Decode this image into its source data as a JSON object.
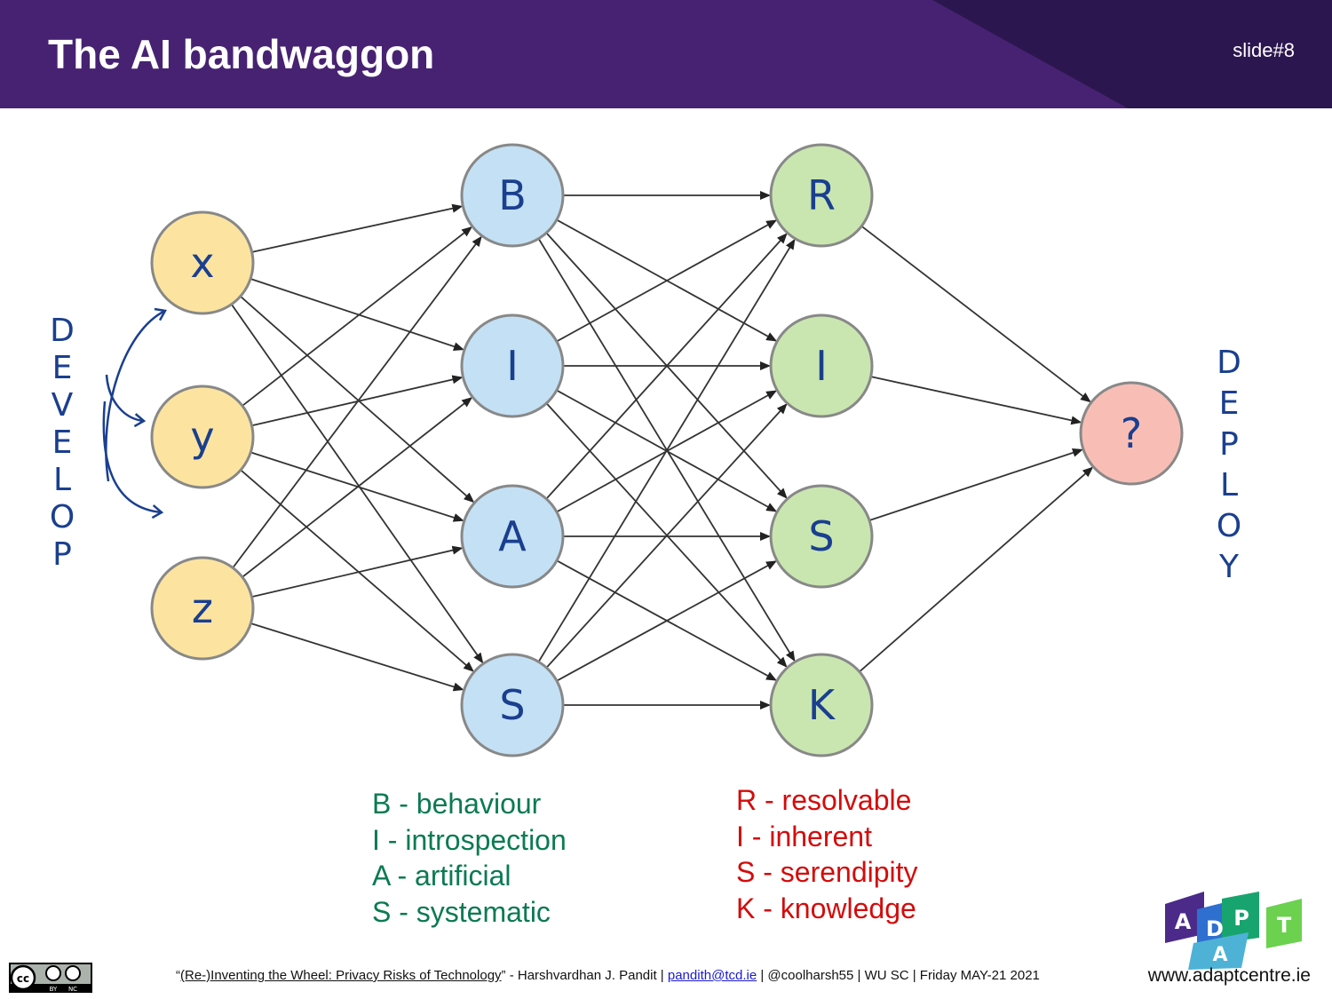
{
  "header": {
    "title": "The AI bandwaggon",
    "slide_number": "slide#8"
  },
  "diagram": {
    "inputs": [
      {
        "id": "x",
        "label": "x"
      },
      {
        "id": "y",
        "label": "y"
      },
      {
        "id": "z",
        "label": "z"
      }
    ],
    "layer1": [
      {
        "id": "B",
        "label": "B"
      },
      {
        "id": "I1",
        "label": "I"
      },
      {
        "id": "A",
        "label": "A"
      },
      {
        "id": "S1",
        "label": "S"
      }
    ],
    "layer2": [
      {
        "id": "R",
        "label": "R"
      },
      {
        "id": "I2",
        "label": "I"
      },
      {
        "id": "S2",
        "label": "S"
      },
      {
        "id": "K",
        "label": "K"
      }
    ],
    "output": {
      "id": "out",
      "label": "?"
    },
    "side_left": [
      "D",
      "E",
      "V",
      "E",
      "L",
      "O",
      "P"
    ],
    "side_right": [
      "D",
      "E",
      "P",
      "L",
      "O",
      "Y"
    ],
    "colors": {
      "input_fill": "#fce4a0",
      "layer1_fill": "#c4e0f4",
      "layer2_fill": "#c9e6b0",
      "output_fill": "#f8beb6",
      "node_stroke": "#888888",
      "edge": "#333333",
      "handwriting": "#1a3f8f"
    }
  },
  "legend_left": [
    "B - behaviour",
    "I - introspection",
    "A - artificial",
    "S - systematic"
  ],
  "legend_right": [
    "R - resolvable",
    "I - inherent",
    "S - serendipity",
    "K - knowledge"
  ],
  "footer": {
    "quote_open": "“",
    "talk_title": "(Re-)Inventing the Wheel: Privacy Risks of Technology",
    "quote_close": "”",
    "author": " - Harshvardhan J. Pandit | ",
    "email": "pandith@tcd.ie",
    "rest": " | @coolharsh55 | WU SC | Friday MAY-21 2021",
    "website": "www.adaptcentre.ie"
  },
  "logos": {
    "cc": {
      "main": "cc",
      "by": "BY",
      "nc": "NC"
    },
    "adapt": [
      "A",
      "D",
      "A",
      "P",
      "T"
    ]
  }
}
